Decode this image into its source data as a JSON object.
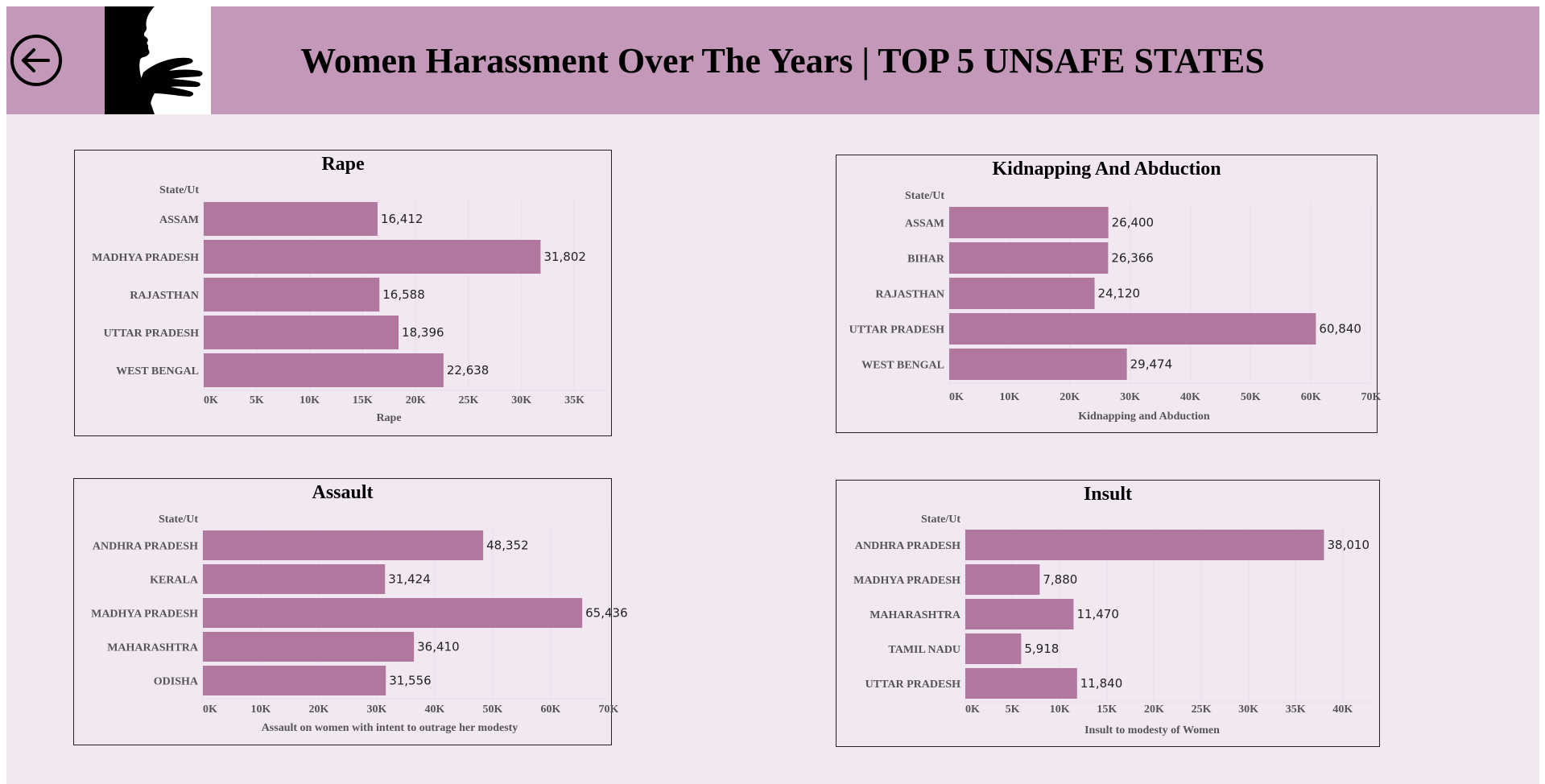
{
  "header": {
    "title": "Women Harassment Over The Years | TOP 5 UNSAFE STATES",
    "back_icon": "arrow-left-circle-icon",
    "logo_icon": "woman-silhouette-hand-icon",
    "background_color": "#c398b8"
  },
  "colors": {
    "bar": "#b0779f",
    "dashboard_bg": "#f2e8f2"
  },
  "chart_data": [
    {
      "type": "bar",
      "orientation": "horizontal",
      "title": "Rape",
      "row_header": "State/Ut",
      "categories": [
        "ASSAM",
        "MADHYA PRADESH",
        "RAJASTHAN",
        "UTTAR PRADESH",
        "WEST BENGAL"
      ],
      "values": [
        16412,
        31802,
        16588,
        18396,
        22638
      ],
      "value_labels": [
        "16,412",
        "31,802",
        "16,588",
        "18,396",
        "22,638"
      ],
      "xlabel": "Rape",
      "xticks": [
        "0K",
        "5K",
        "10K",
        "15K",
        "20K",
        "25K",
        "30K",
        "35K"
      ],
      "xtick_values": [
        0,
        5000,
        10000,
        15000,
        20000,
        25000,
        30000,
        35000
      ],
      "xlim": [
        0,
        38000
      ],
      "grid": true
    },
    {
      "type": "bar",
      "orientation": "horizontal",
      "title": "Kidnapping And Abduction",
      "row_header": "State/Ut",
      "categories": [
        "ASSAM",
        "BIHAR",
        "RAJASTHAN",
        "UTTAR PRADESH",
        "WEST BENGAL"
      ],
      "values": [
        26400,
        26366,
        24120,
        60840,
        29474
      ],
      "value_labels": [
        "26,400",
        "26,366",
        "24,120",
        "60,840",
        "29,474"
      ],
      "xlabel": "Kidnapping and Abduction",
      "xticks": [
        "0K",
        "10K",
        "20K",
        "30K",
        "40K",
        "50K",
        "60K",
        "70K"
      ],
      "xtick_values": [
        0,
        10000,
        20000,
        30000,
        40000,
        50000,
        60000,
        70000
      ],
      "xlim": [
        0,
        70000
      ],
      "grid": true
    },
    {
      "type": "bar",
      "orientation": "horizontal",
      "title": "Assault",
      "row_header": "State/Ut",
      "categories": [
        "ANDHRA PRADESH",
        "KERALA",
        "MADHYA PRADESH",
        "MAHARASHTRA",
        "ODISHA"
      ],
      "values": [
        48352,
        31424,
        65436,
        36410,
        31556
      ],
      "value_labels": [
        "48,352",
        "31,424",
        "65,436",
        "36,410",
        "31,556"
      ],
      "xlabel": "Assault on women with intent to outrage her modesty",
      "xticks": [
        "0K",
        "10K",
        "20K",
        "30K",
        "40K",
        "50K",
        "60K",
        "70K"
      ],
      "xtick_values": [
        0,
        10000,
        20000,
        30000,
        40000,
        50000,
        60000,
        70000
      ],
      "xlim": [
        0,
        70000
      ],
      "grid": true
    },
    {
      "type": "bar",
      "orientation": "horizontal",
      "title": "Insult",
      "row_header": "State/Ut",
      "categories": [
        "ANDHRA PRADESH",
        "MADHYA PRADESH",
        "MAHARASHTRA",
        "TAMIL NADU",
        "UTTAR PRADESH"
      ],
      "values": [
        38010,
        7880,
        11470,
        5918,
        11840
      ],
      "value_labels": [
        "38,010",
        "7,880",
        "11,470",
        "5,918",
        "11,840"
      ],
      "xlabel": "Insult to modesty of Women",
      "xticks": [
        "0K",
        "5K",
        "10K",
        "15K",
        "20K",
        "25K",
        "30K",
        "35K",
        "40K"
      ],
      "xtick_values": [
        0,
        5000,
        10000,
        15000,
        20000,
        25000,
        30000,
        35000,
        40000
      ],
      "xlim": [
        0,
        43000
      ],
      "grid": true
    }
  ]
}
